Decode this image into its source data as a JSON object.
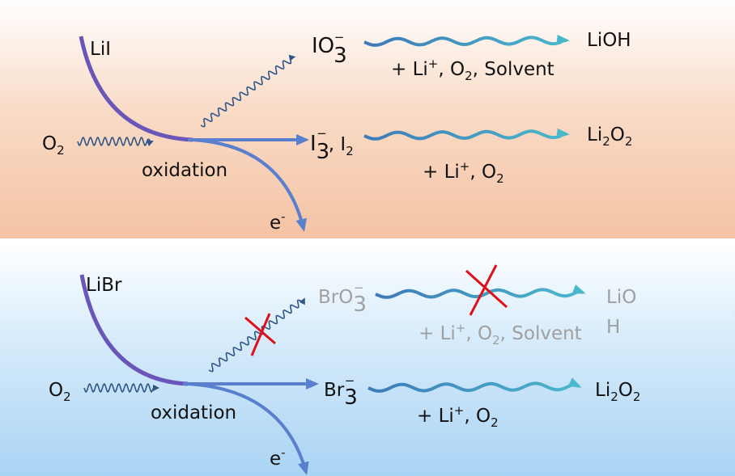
{
  "colors": {
    "top_panel": "#f4c3a3",
    "bottom_panel": "#a9d3f4",
    "main_curve": "#6a55b8",
    "branch": "#5a7fcf",
    "wavy_dark": "#2f5687",
    "wavy_light": "#4ab0c8",
    "cross": "#e0101a",
    "disabled_text": "#a0a0a0"
  },
  "top": {
    "reactant": "LiI",
    "oxygen": "O",
    "oxygen_sub": "2",
    "process": "oxidation",
    "electron": "e",
    "electron_sup": "-",
    "side_product": "IO",
    "side_product_sub": "3",
    "side_product_sup": "−",
    "main_product": "I",
    "main_product_sub": "3",
    "main_product_sup": "−",
    "main_product_extra": ", I",
    "main_product_extra_sub": "2",
    "side_condition": {
      "prefix": "+ Li",
      "sup": "+",
      "mid": ", O",
      "sub": "2",
      "suffix": ", Solvent"
    },
    "side_final": "LiOH",
    "main_condition": {
      "prefix": "+ Li",
      "sup": "+",
      "mid": ", O",
      "sub": "2"
    },
    "main_final": {
      "a": "Li",
      "a_sub": "2",
      "b": "O",
      "b_sub": "2"
    }
  },
  "bottom": {
    "reactant": "LiBr",
    "oxygen": "O",
    "oxygen_sub": "2",
    "process": "oxidation",
    "electron": "e",
    "electron_sup": "-",
    "side_product": "BrO",
    "side_product_sub": "3",
    "side_product_sup": "−",
    "main_product": "Br",
    "main_product_sub": "3",
    "main_product_sup": "−",
    "side_condition": {
      "prefix": "+ Li",
      "sup": "+",
      "mid": ", O",
      "sub": "2",
      "suffix": ", Solvent"
    },
    "side_final_line1": "LiO",
    "side_final_line2": "H",
    "main_condition": {
      "prefix": "+ Li",
      "sup": "+",
      "mid": ", O",
      "sub": "2"
    },
    "main_final": {
      "a": "Li",
      "a_sub": "2",
      "b": "O",
      "b_sub": "2"
    },
    "blocked_paths": 2
  }
}
